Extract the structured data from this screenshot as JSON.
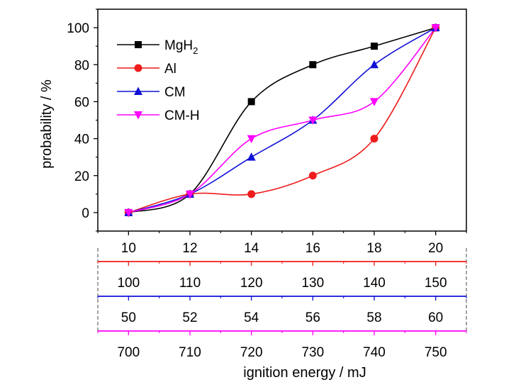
{
  "chart_data": {
    "type": "line",
    "xlabel": "ignition energy / mJ",
    "ylabel": "probability / %",
    "x": [
      10,
      12,
      14,
      16,
      18,
      20
    ],
    "xlim": [
      9,
      21
    ],
    "ylim": [
      -10,
      110
    ],
    "yticks": [
      0,
      20,
      40,
      60,
      80,
      100
    ],
    "legend_position": "top-left",
    "series": [
      {
        "name": "MgH",
        "name_sub": "2",
        "color": "#000000",
        "marker": "square",
        "values": [
          0,
          10,
          60,
          80,
          90,
          100
        ]
      },
      {
        "name": "Al",
        "color": "#ee1c1c",
        "marker": "circle",
        "values": [
          0,
          10,
          10,
          20,
          40,
          100
        ]
      },
      {
        "name": "CM",
        "color": "#1010d8",
        "marker": "triangle-up",
        "values": [
          0,
          10,
          30,
          50,
          80,
          100
        ]
      },
      {
        "name": "CM-H",
        "color": "#ff00ff",
        "marker": "triangle-down",
        "values": [
          0,
          10,
          40,
          50,
          60,
          100
        ]
      }
    ],
    "secondary_axes": [
      {
        "color": "#ee1c1c",
        "ticks": [
          "100",
          "110",
          "120",
          "130",
          "140",
          "150"
        ]
      },
      {
        "color": "#1010d8",
        "ticks": [
          "50",
          "52",
          "54",
          "56",
          "58",
          "60"
        ]
      },
      {
        "color": "#ff00ff",
        "ticks": [
          "700",
          "710",
          "720",
          "730",
          "740",
          "750"
        ]
      }
    ]
  }
}
